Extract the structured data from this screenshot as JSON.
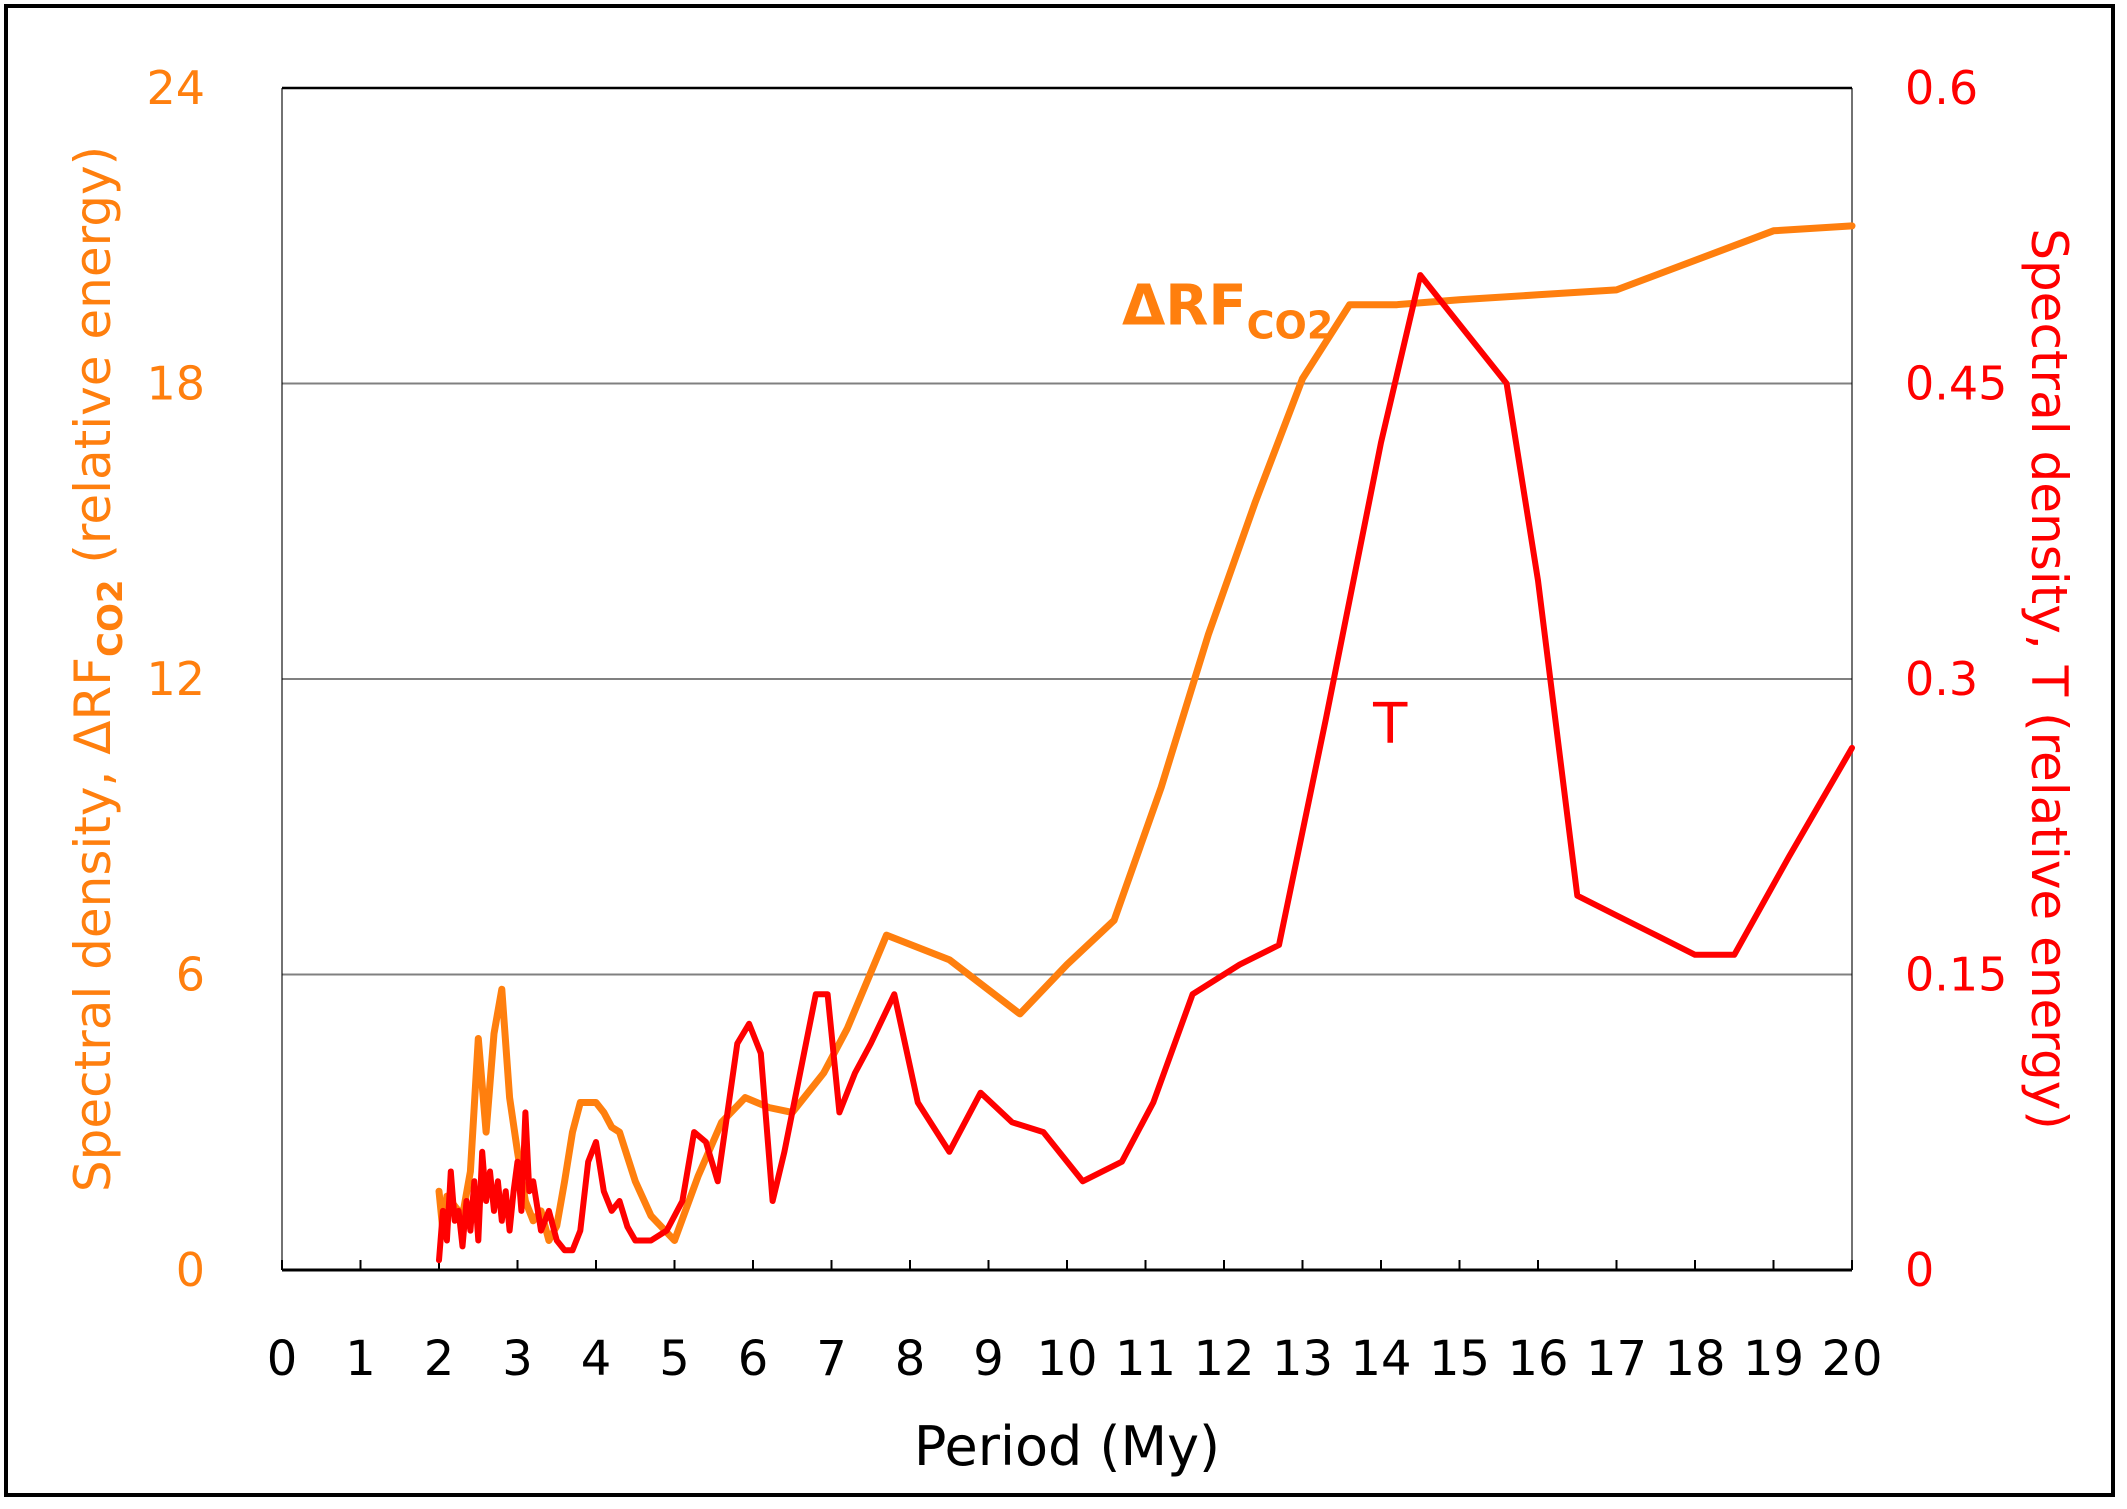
{
  "chart_data": {
    "type": "line",
    "xlabel": "Period (My)",
    "ylabel_left": {
      "prefix": "Spectral density, ΔRF",
      "sub": "CO2",
      "suffix": " (relative energy)"
    },
    "ylabel_right": "Spectral density, T (relative energy)",
    "xlim": [
      0,
      20
    ],
    "ylim_left": [
      0,
      24
    ],
    "ylim_right": [
      0,
      0.6
    ],
    "x_ticks": [
      0,
      1,
      2,
      3,
      4,
      5,
      6,
      7,
      8,
      9,
      10,
      11,
      12,
      13,
      14,
      15,
      16,
      17,
      18,
      19,
      20
    ],
    "x_tick_labels": [
      "0",
      "1",
      "2",
      "3",
      "4",
      "5",
      "6",
      "7",
      "8",
      "9",
      "10",
      "11",
      "12",
      "13",
      "14",
      "15",
      "16",
      "17",
      "18",
      "19",
      "20"
    ],
    "y_left_ticks": [
      0,
      6,
      12,
      18,
      24
    ],
    "y_left_tick_labels": [
      "0",
      "6",
      "12",
      "18",
      "24"
    ],
    "y_right_ticks": [
      0,
      0.15,
      0.3,
      0.45,
      0.6
    ],
    "y_right_tick_labels": [
      "0",
      "0.15",
      "0.3",
      "0.45",
      "0.6"
    ],
    "grid": "horizontal",
    "colors": {
      "co2": "#ff7f0e",
      "t": "#ff0000",
      "axis": "#000000",
      "grid": "#808080"
    },
    "annotations": [
      {
        "series": "co2",
        "text": "ΔRF",
        "sub": "CO2",
        "x": 10.7,
        "y": 19.2
      },
      {
        "series": "t",
        "text": "T",
        "x": 13.9,
        "y": 10.7
      }
    ],
    "series": [
      {
        "name": "ΔRF CO2",
        "axis": "left",
        "color": "#ff7f0e",
        "x": [
          2.0,
          2.05,
          2.1,
          2.2,
          2.3,
          2.4,
          2.5,
          2.6,
          2.7,
          2.8,
          2.9,
          3.0,
          3.1,
          3.2,
          3.3,
          3.4,
          3.5,
          3.6,
          3.7,
          3.8,
          3.9,
          4.0,
          4.1,
          4.2,
          4.3,
          4.5,
          4.7,
          5.0,
          5.3,
          5.6,
          5.9,
          6.2,
          6.5,
          6.9,
          7.2,
          7.7,
          8.5,
          9.4,
          10.0,
          10.6,
          11.2,
          11.8,
          12.4,
          13.0,
          13.6,
          14.2,
          15.0,
          16.0,
          17.0,
          18.0,
          19.0,
          20.0
        ],
        "values": [
          1.6,
          0.8,
          1.5,
          1.3,
          1.1,
          2.0,
          4.7,
          2.8,
          4.8,
          5.7,
          3.5,
          2.4,
          1.4,
          1.0,
          1.2,
          0.6,
          0.9,
          1.8,
          2.8,
          3.4,
          3.4,
          3.4,
          3.2,
          2.9,
          2.8,
          1.8,
          1.1,
          0.6,
          1.9,
          3.0,
          3.5,
          3.3,
          3.2,
          4.0,
          4.9,
          6.8,
          6.3,
          5.2,
          6.2,
          7.1,
          9.8,
          12.9,
          15.6,
          18.1,
          19.6,
          19.6,
          19.7,
          19.8,
          19.9,
          20.5,
          21.1,
          21.2
        ]
      },
      {
        "name": "T",
        "axis": "right",
        "color": "#ff0000",
        "x": [
          2.0,
          2.05,
          2.1,
          2.15,
          2.2,
          2.25,
          2.3,
          2.35,
          2.4,
          2.45,
          2.5,
          2.55,
          2.6,
          2.65,
          2.7,
          2.75,
          2.8,
          2.85,
          2.9,
          2.95,
          3.0,
          3.05,
          3.1,
          3.15,
          3.2,
          3.3,
          3.4,
          3.5,
          3.6,
          3.7,
          3.8,
          3.9,
          4.0,
          4.1,
          4.2,
          4.3,
          4.4,
          4.5,
          4.7,
          4.9,
          5.1,
          5.25,
          5.4,
          5.55,
          5.8,
          5.95,
          6.1,
          6.25,
          6.4,
          6.6,
          6.8,
          6.95,
          7.1,
          7.3,
          7.5,
          7.8,
          8.1,
          8.5,
          8.9,
          9.3,
          9.7,
          10.2,
          10.7,
          11.1,
          11.6,
          12.2,
          12.7,
          13.3,
          14.0,
          14.5,
          14.8,
          15.2,
          15.6,
          16.0,
          16.5,
          17.0,
          17.5,
          18.0,
          18.5,
          19.2,
          20.0
        ],
        "values": [
          0.005,
          0.03,
          0.015,
          0.05,
          0.025,
          0.03,
          0.012,
          0.035,
          0.02,
          0.045,
          0.015,
          0.06,
          0.035,
          0.05,
          0.03,
          0.045,
          0.025,
          0.04,
          0.02,
          0.04,
          0.055,
          0.03,
          0.08,
          0.04,
          0.045,
          0.02,
          0.03,
          0.015,
          0.01,
          0.01,
          0.02,
          0.055,
          0.065,
          0.04,
          0.03,
          0.035,
          0.022,
          0.015,
          0.015,
          0.02,
          0.035,
          0.07,
          0.065,
          0.045,
          0.115,
          0.125,
          0.11,
          0.035,
          0.06,
          0.1,
          0.14,
          0.14,
          0.08,
          0.1,
          0.115,
          0.14,
          0.085,
          0.06,
          0.09,
          0.075,
          0.07,
          0.045,
          0.055,
          0.085,
          0.14,
          0.155,
          0.165,
          0.28,
          0.42,
          0.505,
          0.49,
          0.47,
          0.45,
          0.35,
          0.19,
          0.18,
          0.17,
          0.16,
          0.16,
          0.21,
          0.265
        ]
      }
    ]
  }
}
